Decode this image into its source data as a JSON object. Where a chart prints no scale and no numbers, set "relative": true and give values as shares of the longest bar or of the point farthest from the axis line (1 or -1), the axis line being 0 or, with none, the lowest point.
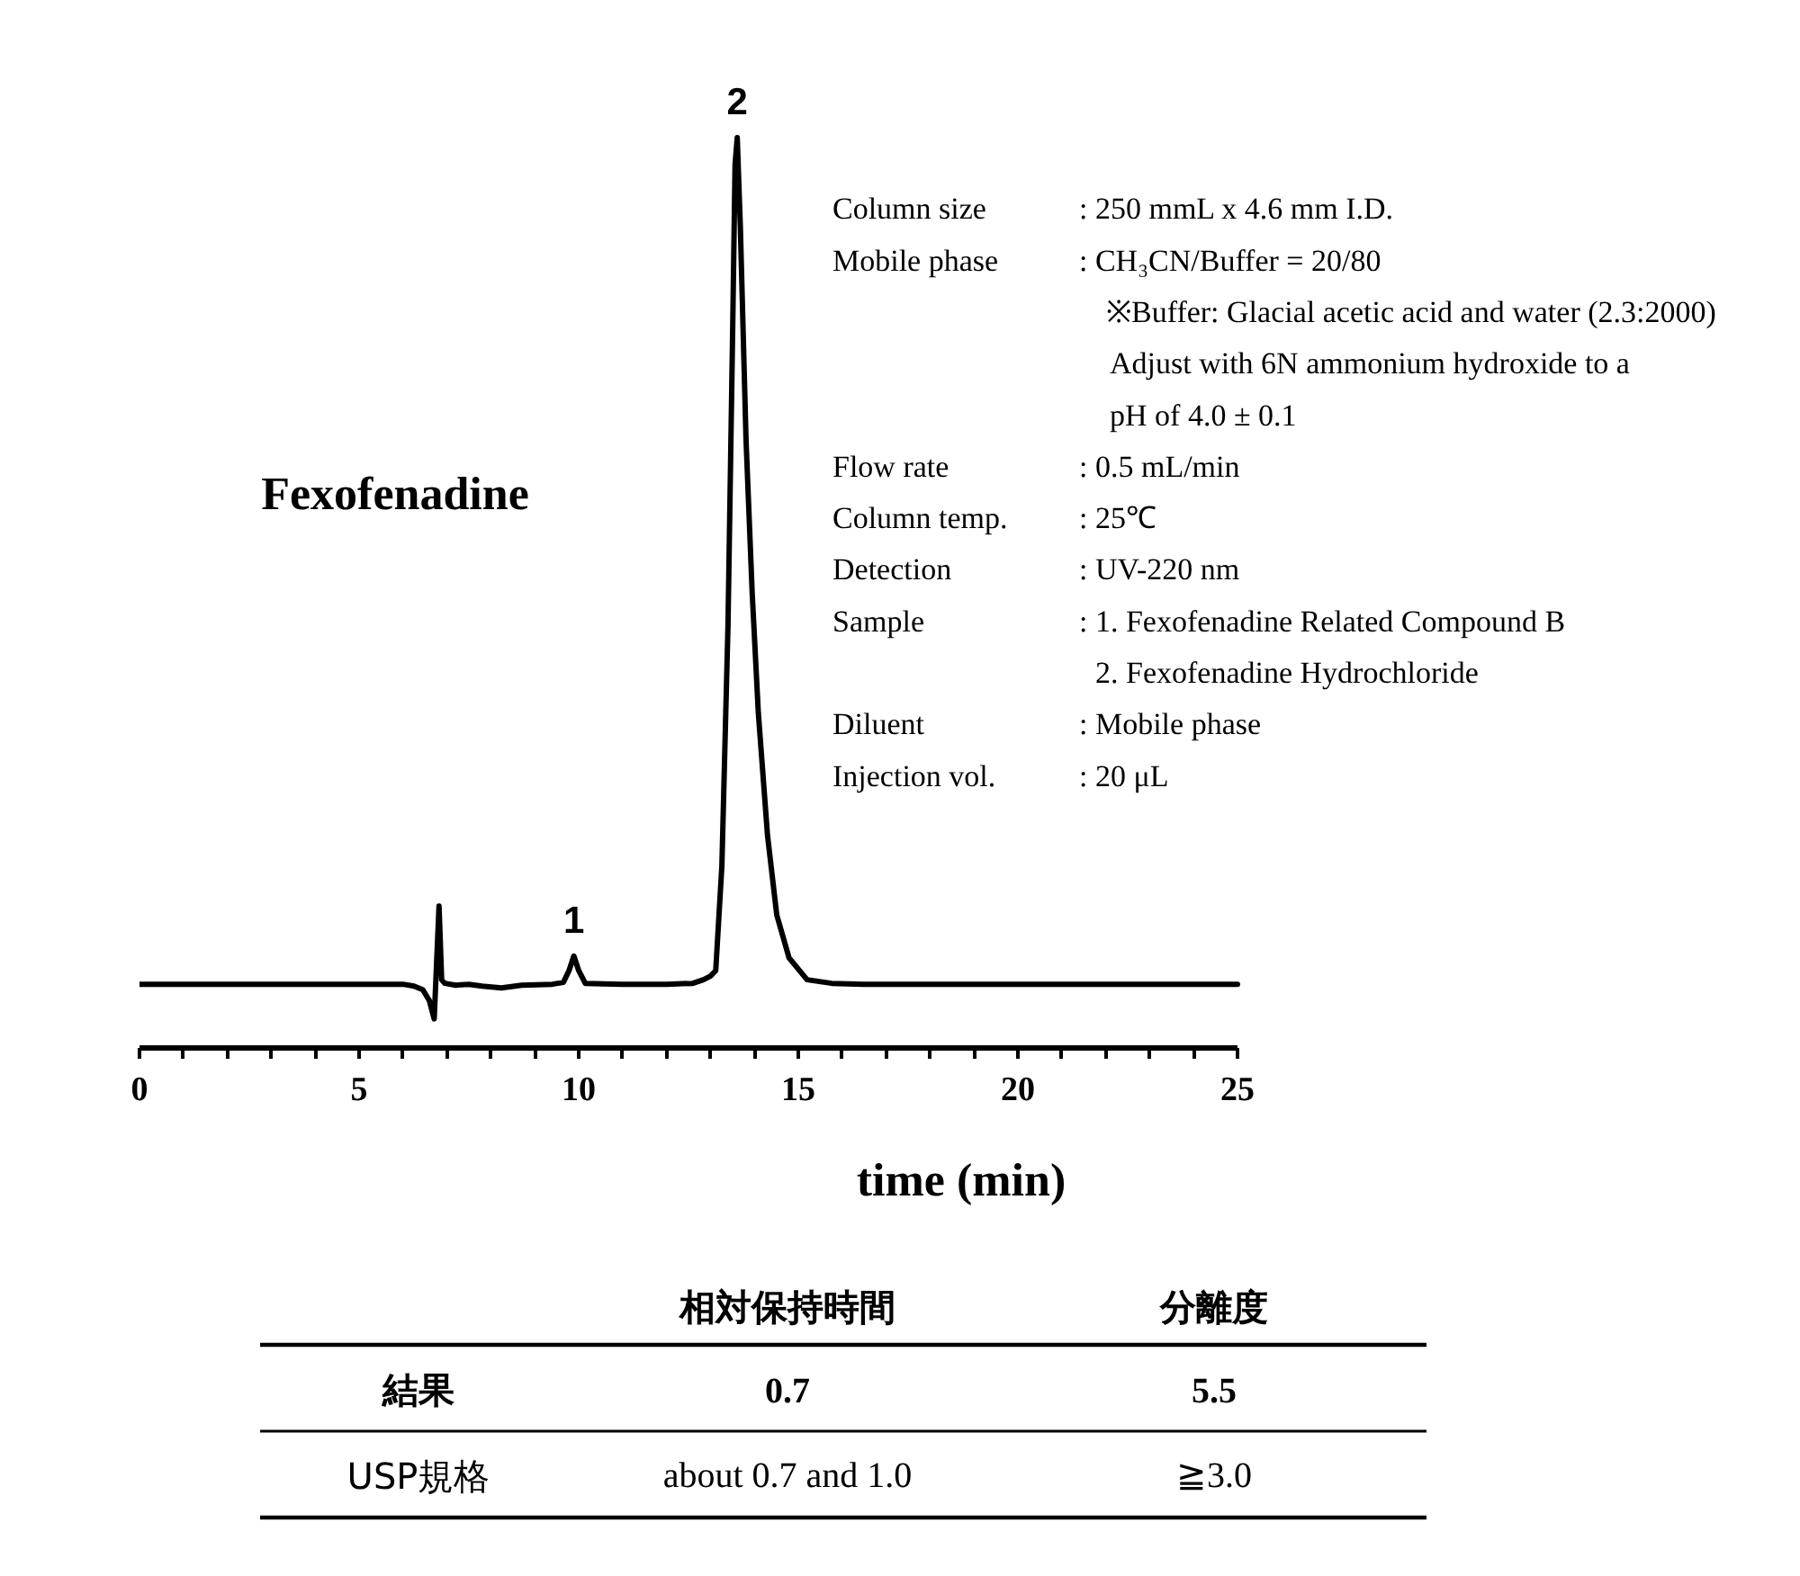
{
  "chart_data": [
    {
      "type": "line",
      "x": [
        0,
        3,
        5.5,
        6.0,
        6.25,
        6.45,
        6.6,
        6.71,
        6.82,
        6.88,
        6.95,
        7.2,
        7.5,
        7.8,
        8.24,
        8.7,
        9.4,
        9.65,
        9.78,
        9.89,
        10.0,
        10.15,
        11,
        12,
        12.6,
        12.84,
        13.0,
        13.12,
        13.26,
        13.4,
        13.51,
        13.56,
        13.61,
        13.68,
        13.81,
        13.95,
        14.09,
        14.3,
        14.51,
        14.79,
        15.2,
        15.76,
        16.5,
        20,
        25
      ],
      "series": [
        {
          "color": "#000000",
          "values": [
            0.07,
            0.07,
            0.07,
            0.07,
            0.068,
            0.064,
            0.052,
            0.032,
            0.156,
            0.075,
            0.071,
            0.069,
            0.07,
            0.068,
            0.066,
            0.069,
            0.07,
            0.072,
            0.085,
            0.101,
            0.085,
            0.071,
            0.07,
            0.07,
            0.071,
            0.075,
            0.079,
            0.085,
            0.2,
            0.466,
            0.802,
            0.97,
            1.0,
            0.903,
            0.668,
            0.5,
            0.368,
            0.233,
            0.146,
            0.099,
            0.075,
            0.071,
            0.07,
            0.07,
            0.07
          ]
        }
      ],
      "relative": true,
      "xlim": [
        0,
        25
      ],
      "xticks": [
        0,
        {
          "value": 1,
          "label": null
        },
        {
          "value": 2,
          "label": null
        },
        {
          "value": 3,
          "label": null
        },
        {
          "value": 4,
          "label": null
        },
        5,
        {
          "value": 6,
          "label": null
        },
        {
          "value": 7,
          "label": null
        },
        {
          "value": 8,
          "label": null
        },
        {
          "value": 9,
          "label": null
        },
        10,
        {
          "value": 11,
          "label": null
        },
        {
          "value": 12,
          "label": null
        },
        {
          "value": 13,
          "label": null
        },
        {
          "value": 14,
          "label": null
        },
        15,
        {
          "value": 16,
          "label": null
        },
        {
          "value": 17,
          "label": null
        },
        {
          "value": 18,
          "label": null
        },
        {
          "value": 19,
          "label": null
        },
        20,
        {
          "value": 21,
          "label": null
        },
        {
          "value": 22,
          "label": null
        },
        {
          "value": 23,
          "label": null
        },
        {
          "value": 24,
          "label": null
        },
        25
      ],
      "xlabel": "time (min)",
      "annotations": [
        {
          "text": "1",
          "x": 9.89,
          "y": 0.101
        },
        {
          "text": "2",
          "x": 13.61,
          "y": 1.0
        },
        "Fexofenadine",
        "Column size",
        ": 250 mmL x 4.6 mm I.D.",
        "Mobile phase",
        ": CH₃CN/Buffer = 20/80",
        "※Buffer: Glacial acetic acid and water (2.3:2000)",
        "Adjust with 6N ammonium hydroxide to a",
        "pH of 4.0 ± 0.1",
        "Flow rate",
        ": 0.5 mL/min",
        "Column temp.",
        ": 25℃",
        "Detection",
        ": UV-220 nm",
        "Sample",
        ": 1. Fexofenadine Related Compound B",
        "2. Fexofenadine Hydrochloride",
        "Diluent",
        ": Mobile phase",
        "Injection vol.",
        ": 20 μL"
      ]
    },
    {
      "type": "other",
      "annotations": [
        "相対保持時間",
        "分離度",
        "結果",
        "0.7",
        "5.5",
        "USP規格",
        "about 0.7 and 1.0",
        "≧3.0"
      ]
    }
  ]
}
